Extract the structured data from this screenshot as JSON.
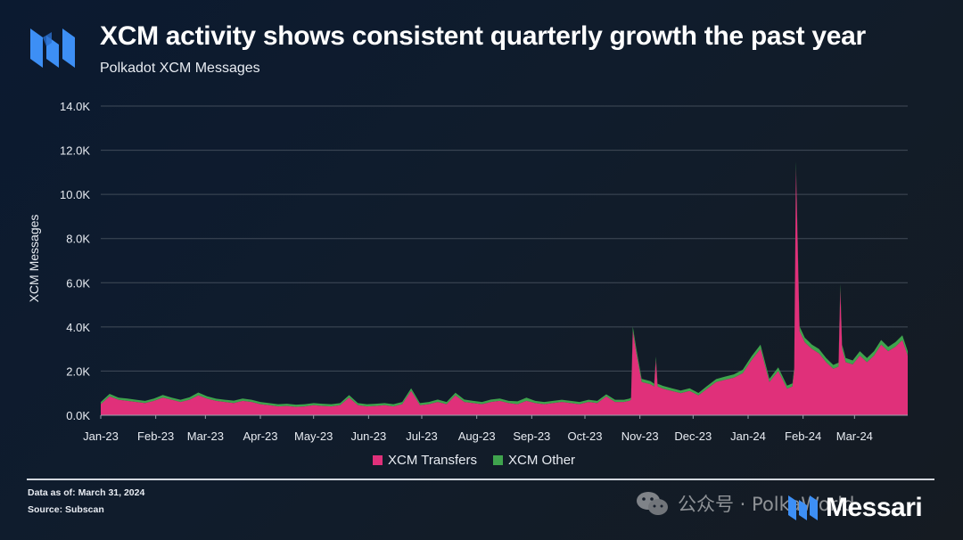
{
  "header": {
    "title": "XCM activity shows consistent quarterly growth the past year",
    "subtitle": "Polkadot XCM Messages"
  },
  "footer": {
    "data_as_of": "Data as of: March 31, 2024",
    "source": "Source: Subscan",
    "brand": "Messari",
    "watermark": "公众号 · PolkaWorld"
  },
  "colors": {
    "transfers": "#e0307a",
    "other": "#3fa34d",
    "brand_blue": "#3d8ff5",
    "grid": "#56606c"
  },
  "icons": [
    "messari-logo-icon",
    "wechat-icon"
  ],
  "chart_data": {
    "type": "area",
    "stacked": true,
    "ylabel": "XCM Messages",
    "xlabel": "",
    "ylim": [
      0,
      14000
    ],
    "yticks": [
      0,
      2000,
      4000,
      6000,
      8000,
      10000,
      12000,
      14000
    ],
    "ytick_labels": [
      "0.0K",
      "2.0K",
      "4.0K",
      "6.0K",
      "8.0K",
      "10.0K",
      "12.0K",
      "14.0K"
    ],
    "xlim": [
      "2023-01-01",
      "2024-03-31"
    ],
    "xtick_labels": [
      "Jan-23",
      "Feb-23",
      "Mar-23",
      "Apr-23",
      "May-23",
      "Jun-23",
      "Jul-23",
      "Aug-23",
      "Sep-23",
      "Oct-23",
      "Nov-23",
      "Dec-23",
      "Jan-24",
      "Feb-24",
      "Mar-24"
    ],
    "grid": true,
    "legend_position": "bottom-center",
    "x": [
      "2023-01-01",
      "2023-01-06",
      "2023-01-11",
      "2023-01-16",
      "2023-01-21",
      "2023-01-26",
      "2023-01-31",
      "2023-02-05",
      "2023-02-10",
      "2023-02-15",
      "2023-02-20",
      "2023-02-25",
      "2023-03-02",
      "2023-03-07",
      "2023-03-12",
      "2023-03-17",
      "2023-03-22",
      "2023-03-27",
      "2023-04-01",
      "2023-04-06",
      "2023-04-11",
      "2023-04-16",
      "2023-04-21",
      "2023-04-26",
      "2023-05-01",
      "2023-05-06",
      "2023-05-11",
      "2023-05-16",
      "2023-05-21",
      "2023-05-26",
      "2023-05-31",
      "2023-06-05",
      "2023-06-10",
      "2023-06-15",
      "2023-06-20",
      "2023-06-25",
      "2023-06-30",
      "2023-07-05",
      "2023-07-10",
      "2023-07-15",
      "2023-07-20",
      "2023-07-25",
      "2023-07-30",
      "2023-08-04",
      "2023-08-09",
      "2023-08-14",
      "2023-08-19",
      "2023-08-24",
      "2023-08-29",
      "2023-09-03",
      "2023-09-08",
      "2023-09-13",
      "2023-09-18",
      "2023-09-23",
      "2023-09-28",
      "2023-10-03",
      "2023-10-08",
      "2023-10-13",
      "2023-10-18",
      "2023-10-23",
      "2023-10-26",
      "2023-10-27",
      "2023-10-28",
      "2023-10-30",
      "2023-11-02",
      "2023-11-07",
      "2023-11-09",
      "2023-11-10",
      "2023-11-11",
      "2023-11-14",
      "2023-11-19",
      "2023-11-24",
      "2023-11-29",
      "2023-12-04",
      "2023-12-09",
      "2023-12-14",
      "2023-12-19",
      "2023-12-24",
      "2023-12-29",
      "2024-01-03",
      "2024-01-08",
      "2024-01-13",
      "2024-01-18",
      "2024-01-23",
      "2024-01-26",
      "2024-01-27",
      "2024-01-28",
      "2024-01-30",
      "2024-02-02",
      "2024-02-06",
      "2024-02-10",
      "2024-02-14",
      "2024-02-18",
      "2024-02-21",
      "2024-02-22",
      "2024-02-23",
      "2024-02-25",
      "2024-02-29",
      "2024-03-04",
      "2024-03-08",
      "2024-03-12",
      "2024-03-16",
      "2024-03-20",
      "2024-03-24",
      "2024-03-28",
      "2024-03-31"
    ],
    "series": [
      {
        "name": "XCM Transfers",
        "values": [
          500,
          850,
          700,
          650,
          600,
          550,
          650,
          800,
          700,
          600,
          700,
          900,
          750,
          650,
          600,
          550,
          650,
          600,
          500,
          450,
          400,
          420,
          380,
          400,
          450,
          420,
          400,
          450,
          800,
          450,
          400,
          420,
          450,
          400,
          500,
          1100,
          450,
          500,
          600,
          500,
          900,
          600,
          550,
          500,
          600,
          650,
          550,
          500,
          650,
          550,
          500,
          550,
          600,
          550,
          500,
          600,
          550,
          850,
          600,
          600,
          650,
          700,
          3800,
          2800,
          1500,
          1400,
          1300,
          2500,
          1300,
          1200,
          1100,
          1000,
          1100,
          900,
          1200,
          1500,
          1600,
          1700,
          1900,
          2500,
          3000,
          1500,
          2000,
          1200,
          1300,
          2000,
          11200,
          3800,
          3300,
          3000,
          2800,
          2400,
          2100,
          2200,
          5700,
          3000,
          2400,
          2300,
          2700,
          2400,
          2700,
          3200,
          2900,
          3100,
          3400,
          2700
        ],
        "color": "#e0307a"
      },
      {
        "name": "XCM Other",
        "values": [
          100,
          120,
          100,
          110,
          100,
          100,
          110,
          120,
          100,
          100,
          110,
          130,
          110,
          100,
          100,
          110,
          110,
          100,
          100,
          100,
          100,
          100,
          100,
          100,
          100,
          100,
          100,
          100,
          110,
          100,
          100,
          100,
          100,
          100,
          100,
          120,
          100,
          100,
          110,
          100,
          120,
          110,
          100,
          100,
          110,
          110,
          100,
          130,
          150,
          100,
          100,
          100,
          100,
          100,
          100,
          100,
          100,
          100,
          100,
          100,
          100,
          100,
          220,
          200,
          150,
          140,
          130,
          160,
          130,
          130,
          120,
          120,
          120,
          110,
          130,
          140,
          150,
          150,
          160,
          180,
          200,
          150,
          170,
          140,
          140,
          170,
          300,
          220,
          210,
          200,
          200,
          190,
          180,
          180,
          250,
          200,
          190,
          180,
          200,
          190,
          200,
          210,
          200,
          210,
          220,
          200
        ],
        "color": "#3fa34d"
      }
    ]
  }
}
